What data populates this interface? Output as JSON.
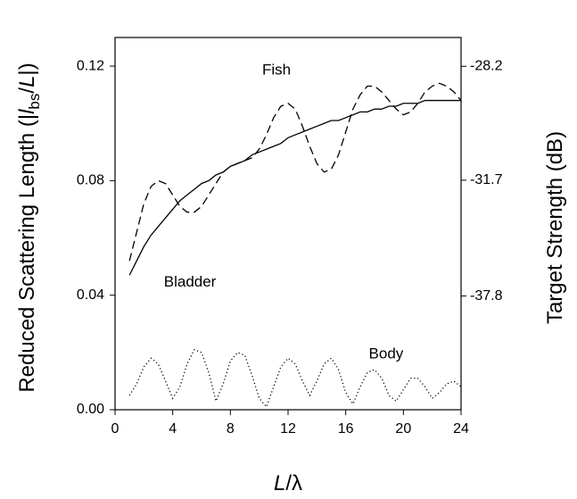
{
  "chart_data": {
    "type": "line",
    "ylabel": [
      "Reduced Scattering Length (|",
      "l",
      "bs",
      "/",
      "L",
      "|)"
    ],
    "y2label": "Target Strength (dB)",
    "xlabel": [
      "L",
      "/λ"
    ],
    "x": [
      1,
      1.5,
      2,
      2.5,
      3,
      3.5,
      4,
      4.5,
      5,
      5.5,
      6,
      6.5,
      7,
      7.5,
      8,
      8.5,
      9,
      9.5,
      10,
      10.5,
      11,
      11.5,
      12,
      12.5,
      13,
      13.5,
      14,
      14.5,
      15,
      15.5,
      16,
      16.5,
      17,
      17.5,
      18,
      18.5,
      19,
      19.5,
      20,
      20.5,
      21,
      21.5,
      22,
      22.5,
      23,
      23.5,
      24
    ],
    "series": [
      {
        "name": "Fish",
        "color": "#000000",
        "dash": "dashed",
        "values": [
          0.052,
          0.062,
          0.072,
          0.078,
          0.08,
          0.079,
          0.075,
          0.071,
          0.069,
          0.069,
          0.071,
          0.075,
          0.079,
          0.083,
          0.085,
          0.086,
          0.087,
          0.088,
          0.091,
          0.096,
          0.102,
          0.106,
          0.107,
          0.105,
          0.099,
          0.092,
          0.086,
          0.083,
          0.084,
          0.089,
          0.097,
          0.105,
          0.11,
          0.113,
          0.113,
          0.111,
          0.108,
          0.105,
          0.103,
          0.104,
          0.107,
          0.111,
          0.113,
          0.114,
          0.113,
          0.111,
          0.108
        ]
      },
      {
        "name": "Bladder",
        "color": "#000000",
        "dash": "solid",
        "values": [
          0.047,
          0.052,
          0.057,
          0.061,
          0.064,
          0.067,
          0.07,
          0.073,
          0.075,
          0.077,
          0.079,
          0.08,
          0.082,
          0.083,
          0.085,
          0.086,
          0.087,
          0.089,
          0.09,
          0.091,
          0.092,
          0.093,
          0.095,
          0.096,
          0.097,
          0.098,
          0.099,
          0.1,
          0.101,
          0.101,
          0.102,
          0.103,
          0.104,
          0.104,
          0.105,
          0.105,
          0.106,
          0.106,
          0.107,
          0.107,
          0.107,
          0.108,
          0.108,
          0.108,
          0.108,
          0.108,
          0.108
        ]
      },
      {
        "name": "Body",
        "color": "#000000",
        "dash": "dotted",
        "values": [
          0.005,
          0.009,
          0.015,
          0.018,
          0.016,
          0.01,
          0.004,
          0.008,
          0.016,
          0.021,
          0.02,
          0.013,
          0.003,
          0.009,
          0.017,
          0.02,
          0.019,
          0.012,
          0.004,
          0.001,
          0.008,
          0.015,
          0.018,
          0.016,
          0.01,
          0.005,
          0.01,
          0.016,
          0.018,
          0.014,
          0.006,
          0.002,
          0.008,
          0.013,
          0.014,
          0.011,
          0.005,
          0.003,
          0.007,
          0.011,
          0.011,
          0.008,
          0.004,
          0.006,
          0.009,
          0.01,
          0.008
        ]
      }
    ],
    "xlim": [
      0,
      24
    ],
    "xticks": [
      0,
      4,
      8,
      12,
      16,
      20,
      24
    ],
    "ylim": [
      0,
      0.13
    ],
    "yticks": [
      {
        "value": 0,
        "label": "0.00"
      },
      0.04,
      0.08,
      0.12
    ],
    "y2scale": "db",
    "y2lim": [
      null,
      -27.5
    ],
    "y2ticks": [
      -28.2,
      -31.7,
      -37.8
    ],
    "grid": false
  }
}
